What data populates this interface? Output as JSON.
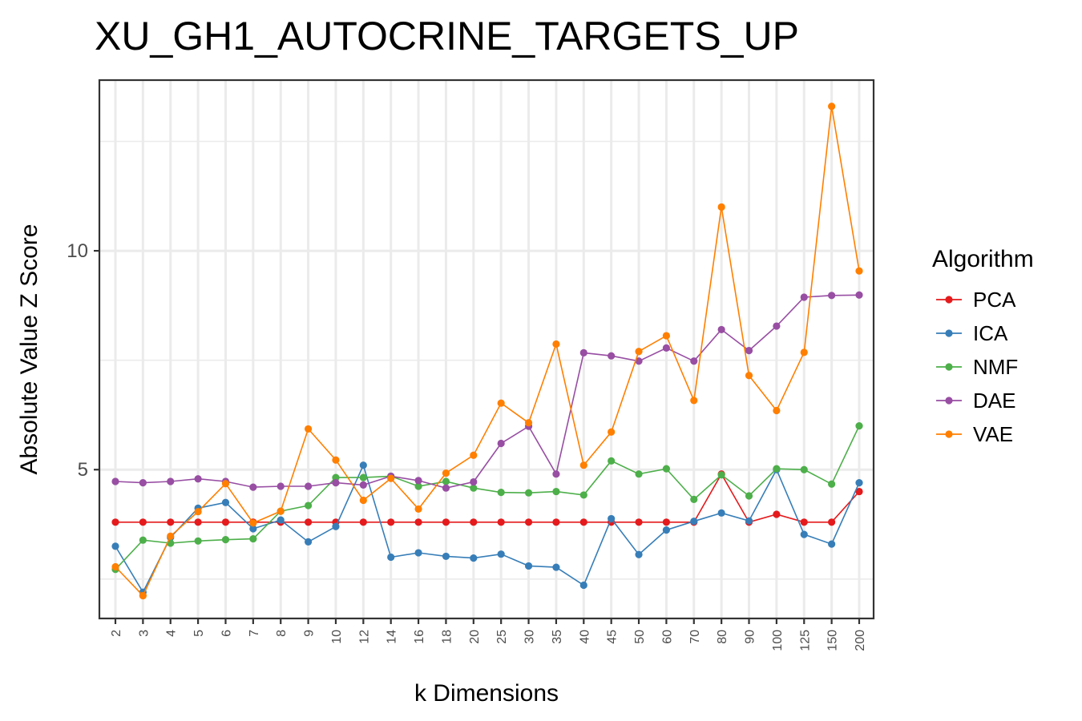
{
  "chart_data": {
    "type": "line",
    "title": "XU_GH1_AUTOCRINE_TARGETS_UP",
    "xlabel": "k Dimensions",
    "ylabel": "Absolute Value Z Score",
    "categories": [
      "2",
      "3",
      "4",
      "5",
      "6",
      "7",
      "8",
      "9",
      "10",
      "12",
      "14",
      "16",
      "18",
      "20",
      "25",
      "30",
      "35",
      "40",
      "45",
      "50",
      "60",
      "70",
      "80",
      "90",
      "100",
      "125",
      "150",
      "200"
    ],
    "ylim": [
      1.6,
      13.9
    ],
    "yticks": [
      5,
      10
    ],
    "grid": true,
    "legend": {
      "title": "Algorithm",
      "position": "right"
    },
    "series": [
      {
        "name": "PCA",
        "color": "#e41a1c",
        "values": [
          3.8,
          3.8,
          3.8,
          3.8,
          3.8,
          3.8,
          3.8,
          3.8,
          3.8,
          3.8,
          3.8,
          3.8,
          3.8,
          3.8,
          3.8,
          3.8,
          3.8,
          3.8,
          3.8,
          3.8,
          3.8,
          3.8,
          4.9,
          3.8,
          3.98,
          3.8,
          3.8,
          4.5
        ]
      },
      {
        "name": "ICA",
        "color": "#377eb8",
        "values": [
          3.25,
          2.2,
          3.45,
          4.12,
          4.25,
          3.65,
          3.85,
          3.35,
          3.7,
          5.1,
          3.0,
          3.1,
          3.02,
          2.98,
          3.07,
          2.8,
          2.77,
          2.36,
          3.88,
          3.06,
          3.62,
          3.82,
          4.01,
          3.83,
          5.0,
          3.52,
          3.3,
          4.7
        ]
      },
      {
        "name": "NMF",
        "color": "#4daf4a",
        "values": [
          2.72,
          3.39,
          3.32,
          3.37,
          3.4,
          3.42,
          4.05,
          4.18,
          4.82,
          4.82,
          4.85,
          4.62,
          4.73,
          4.58,
          4.48,
          4.47,
          4.5,
          4.42,
          5.2,
          4.9,
          5.02,
          4.32,
          4.88,
          4.4,
          5.02,
          5.0,
          4.67,
          6.0
        ]
      },
      {
        "name": "DAE",
        "color": "#984ea3",
        "values": [
          4.73,
          4.7,
          4.73,
          4.79,
          4.73,
          4.6,
          4.62,
          4.62,
          4.7,
          4.65,
          4.85,
          4.75,
          4.58,
          4.72,
          5.6,
          5.99,
          4.9,
          7.67,
          7.6,
          7.48,
          7.78,
          7.48,
          8.2,
          7.72,
          8.28,
          8.94,
          8.98,
          8.99
        ]
      },
      {
        "name": "VAE",
        "color": "#ff7f00",
        "values": [
          2.78,
          2.12,
          3.48,
          4.04,
          4.68,
          3.78,
          4.05,
          5.93,
          5.22,
          4.3,
          4.8,
          4.1,
          4.92,
          5.33,
          6.52,
          6.07,
          7.87,
          5.1,
          5.86,
          7.7,
          8.06,
          6.58,
          11.0,
          7.15,
          6.35,
          7.68,
          13.3,
          9.54
        ]
      }
    ]
  }
}
